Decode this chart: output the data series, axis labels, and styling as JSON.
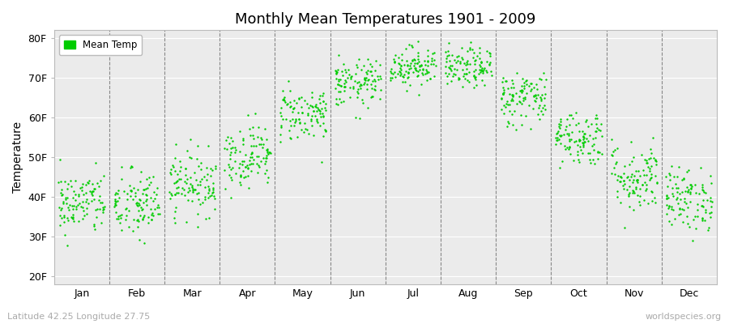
{
  "title": "Monthly Mean Temperatures 1901 - 2009",
  "ylabel": "Temperature",
  "xlabel_months": [
    "Jan",
    "Feb",
    "Mar",
    "Apr",
    "May",
    "Jun",
    "Jul",
    "Aug",
    "Sep",
    "Oct",
    "Nov",
    "Dec"
  ],
  "yticks": [
    20,
    30,
    40,
    50,
    60,
    70,
    80
  ],
  "ytick_labels": [
    "20F",
    "30F",
    "40F",
    "50F",
    "60F",
    "70F",
    "80F"
  ],
  "ylim": [
    18,
    82
  ],
  "legend_label": "Mean Temp",
  "dot_color": "#00CC00",
  "background_color": "#EBEBEB",
  "figure_bg": "#FFFFFF",
  "bottom_left_text": "Latitude 42.25 Longitude 27.75",
  "bottom_right_text": "worldspecies.org",
  "n_years": 109,
  "monthly_means": [
    38.5,
    38.0,
    43.5,
    50.5,
    61.0,
    68.5,
    73.0,
    72.5,
    65.0,
    55.0,
    45.0,
    39.5
  ],
  "monthly_stds": [
    4.0,
    4.5,
    4.0,
    4.0,
    3.5,
    3.0,
    2.5,
    2.5,
    3.5,
    3.5,
    4.5,
    4.0
  ],
  "seed": 42
}
